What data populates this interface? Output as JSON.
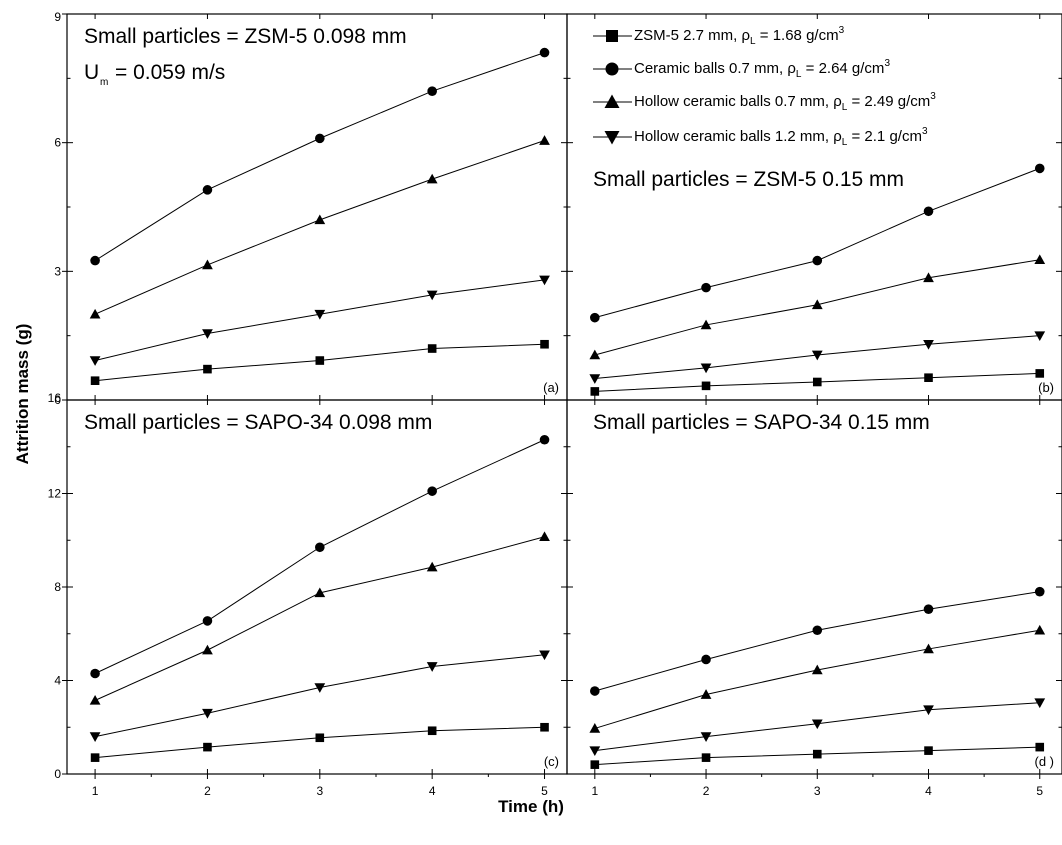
{
  "chart_data": [
    {
      "panel": "a",
      "type": "line",
      "tag": "(a)",
      "annotations": [
        "Small particles = ZSM-5 0.098 mm",
        "U",
        "m",
        " = 0.059 m/s"
      ],
      "x": [
        1,
        2,
        3,
        4,
        5
      ],
      "xlim": [
        0.75,
        5.2
      ],
      "ylim": [
        0,
        9
      ],
      "yticks": [
        0,
        3,
        6,
        9
      ],
      "series": [
        {
          "marker": "square",
          "values": [
            0.45,
            0.72,
            0.92,
            1.2,
            1.3
          ]
        },
        {
          "marker": "circle",
          "values": [
            3.25,
            4.9,
            6.1,
            7.2,
            8.1
          ]
        },
        {
          "marker": "triangle",
          "values": [
            2.0,
            3.15,
            4.2,
            5.15,
            6.05
          ]
        },
        {
          "marker": "inverted-triangle",
          "values": [
            0.92,
            1.55,
            2.0,
            2.45,
            2.8
          ]
        }
      ]
    },
    {
      "panel": "b",
      "type": "line",
      "tag": "(b)",
      "annotations": [
        "Small particles = ZSM-5 0.15 mm"
      ],
      "x": [
        1,
        2,
        3,
        4,
        5
      ],
      "xlim": [
        0.75,
        5.2
      ],
      "ylim": [
        0,
        9
      ],
      "yticks": [],
      "series": [
        {
          "marker": "square",
          "name": "ZSM-5 2.7 mm, ρL = 1.68 g/cm3",
          "values": [
            0.2,
            0.33,
            0.42,
            0.52,
            0.62
          ]
        },
        {
          "marker": "circle",
          "name": "Ceramic balls 0.7 mm, ρL = 2.64 g/cm3",
          "values": [
            1.92,
            2.62,
            3.25,
            4.4,
            5.4
          ]
        },
        {
          "marker": "triangle",
          "name": "Hollow ceramic balls 0.7 mm, ρL = 2.49 g/cm3",
          "values": [
            1.05,
            1.75,
            2.22,
            2.85,
            3.27
          ]
        },
        {
          "marker": "inverted-triangle",
          "name": "Hollow ceramic balls 1.2 mm, ρL = 2.1 g/cm3",
          "values": [
            0.5,
            0.75,
            1.05,
            1.3,
            1.5
          ]
        }
      ]
    },
    {
      "panel": "c",
      "type": "line",
      "tag": "(c)",
      "annotations": [
        "Small particles = SAPO-34 0.098 mm"
      ],
      "x": [
        1,
        2,
        3,
        4,
        5
      ],
      "xlim": [
        0.75,
        5.2
      ],
      "ylim": [
        0,
        16
      ],
      "yticks": [
        0,
        4,
        8,
        12,
        16
      ],
      "series": [
        {
          "marker": "square",
          "values": [
            0.7,
            1.15,
            1.55,
            1.85,
            2.0
          ]
        },
        {
          "marker": "circle",
          "values": [
            4.3,
            6.55,
            9.7,
            12.1,
            14.3
          ]
        },
        {
          "marker": "triangle",
          "values": [
            3.15,
            5.3,
            7.75,
            8.85,
            10.15
          ]
        },
        {
          "marker": "inverted-triangle",
          "values": [
            1.6,
            2.6,
            3.7,
            4.6,
            5.1
          ]
        }
      ]
    },
    {
      "panel": "d",
      "type": "line",
      "tag": "(d )",
      "annotations": [
        "Small particles = SAPO-34 0.15 mm"
      ],
      "x": [
        1,
        2,
        3,
        4,
        5
      ],
      "xlim": [
        0.75,
        5.2
      ],
      "ylim": [
        0,
        16
      ],
      "yticks": [],
      "series": [
        {
          "marker": "square",
          "values": [
            0.4,
            0.7,
            0.85,
            1.0,
            1.15
          ]
        },
        {
          "marker": "circle",
          "values": [
            3.55,
            4.9,
            6.15,
            7.05,
            7.8
          ]
        },
        {
          "marker": "triangle",
          "values": [
            1.95,
            3.4,
            4.45,
            5.35,
            6.15
          ]
        },
        {
          "marker": "inverted-triangle",
          "values": [
            1.0,
            1.6,
            2.15,
            2.75,
            3.05
          ]
        }
      ]
    }
  ],
  "axes": {
    "xlabel": "Time (h)",
    "ylabel": "Attrition mass (g)",
    "xticks": [
      1,
      2,
      3,
      4,
      5
    ]
  },
  "legend": {
    "placement": "top of panel (b)",
    "entries": [
      {
        "marker": "square",
        "pre": "ZSM-5 2.7 mm, ρ",
        "sub": "L",
        "mid": " = 1.68 g/cm",
        "sup": "3"
      },
      {
        "marker": "circle",
        "pre": "Ceramic balls 0.7 mm, ρ",
        "sub": "L",
        "mid": " = 2.64 g/cm",
        "sup": "3"
      },
      {
        "marker": "triangle",
        "pre": "Hollow ceramic balls 0.7 mm, ρ",
        "sub": "L",
        "mid": " = 2.49 g/cm",
        "sup": "3"
      },
      {
        "marker": "inverted-triangle",
        "pre": "Hollow ceramic balls 1.2 mm, ρ",
        "sub": "L",
        "mid": " = 2.1 g/cm",
        "sup": "3"
      }
    ]
  },
  "colors": {
    "line": "#000000",
    "background": "#ffffff"
  }
}
